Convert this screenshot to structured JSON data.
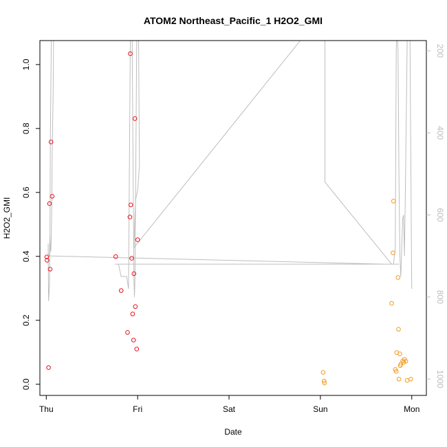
{
  "chart_data": {
    "type": "scatter",
    "title": "ATOM2 Northeast_Pacific_1 H2O2_GMI",
    "xlabel": "Date",
    "ylabel": "H2O2_GMI",
    "x_ticks": [
      "Thu",
      "Fri",
      "Sat",
      "Sun",
      "Mon"
    ],
    "xlim": [
      -0.07,
      4.16
    ],
    "ylim": [
      -0.035,
      1.075
    ],
    "y_ticks": [
      "0.0",
      "0.2",
      "0.4",
      "0.6",
      "0.8",
      "1.0"
    ],
    "y2_ticks": [
      "200",
      "400",
      "600",
      "800",
      "1000"
    ],
    "y2lim": [
      1040,
      175
    ],
    "y2_reversed": true,
    "grid": false,
    "colors": {
      "red_series": "#e8111a",
      "orange_series": "#f39a1c",
      "line": "#bdbdbd"
    },
    "series": [
      {
        "color": "red",
        "x": [
          0.005,
          0.008,
          0.025,
          0.035,
          0.042,
          0.052,
          0.065,
          0.76,
          0.82,
          0.89,
          0.915,
          0.92,
          0.925,
          0.935,
          0.945,
          0.955,
          0.96,
          0.97,
          0.975,
          0.99,
          1.0
        ],
        "y": [
          0.398,
          0.388,
          0.052,
          0.565,
          0.36,
          0.758,
          0.588,
          0.399,
          0.293,
          0.162,
          0.523,
          1.034,
          0.561,
          0.394,
          0.22,
          0.138,
          0.346,
          0.831,
          0.243,
          0.11,
          0.452
        ]
      },
      {
        "color": "orange",
        "x": [
          3.03,
          3.04,
          3.045,
          3.78,
          3.795,
          3.8,
          3.82,
          3.83,
          3.835,
          3.85,
          3.855,
          3.86,
          3.87,
          3.875,
          3.88,
          3.9,
          3.91,
          3.92,
          3.935,
          3.95,
          3.99
        ],
        "y": [
          0.037,
          0.01,
          0.004,
          0.253,
          0.411,
          0.573,
          0.046,
          0.04,
          0.099,
          0.334,
          0.172,
          0.016,
          0.095,
          0.058,
          0.063,
          0.073,
          0.068,
          0.078,
          0.072,
          0.012,
          0.016
        ]
      }
    ],
    "altitude_line": {
      "axis": "right",
      "x": [
        0.02,
        0.025,
        0.035,
        0.04,
        0.045,
        0.055,
        0.06,
        0.07,
        0.24,
        0.08,
        0.075,
        0.065,
        0.06,
        0.055,
        0.05,
        0.045,
        0.04,
        0.035,
        0.03,
        0.07,
        3.7,
        3.74,
        3.86,
        0.75,
        0.79,
        0.82,
        0.88,
        0.9,
        0.91,
        0.92,
        0.93,
        0.94,
        0.95,
        0.96,
        0.965,
        0.97,
        0.98,
        0.99,
        1.0,
        1.01,
        1.02,
        1.0,
        0.98,
        0.97,
        0.96,
        3.05,
        3.05,
        3.78,
        3.8,
        3.81,
        3.82,
        3.83,
        3.84,
        3.845,
        3.85,
        3.86,
        3.87,
        3.88,
        3.9,
        3.91,
        3.92,
        3.93,
        3.95,
        3.96,
        3.98,
        4.0
      ],
      "y": [
        670,
        810,
        770,
        660,
        400,
        175,
        100,
        100,
        175,
        175,
        300,
        450,
        580,
        650,
        690,
        680,
        650,
        690,
        700,
        700,
        720,
        720,
        720,
        720,
        720,
        750,
        750,
        780,
        480,
        175,
        100,
        175,
        480,
        760,
        800,
        760,
        480,
        175,
        100,
        175,
        480,
        540,
        560,
        600,
        680,
        100,
        520,
        720,
        720,
        700,
        680,
        200,
        100,
        175,
        200,
        500,
        700,
        750,
        610,
        600,
        700,
        550,
        175,
        100,
        150,
        780
      ]
    }
  }
}
